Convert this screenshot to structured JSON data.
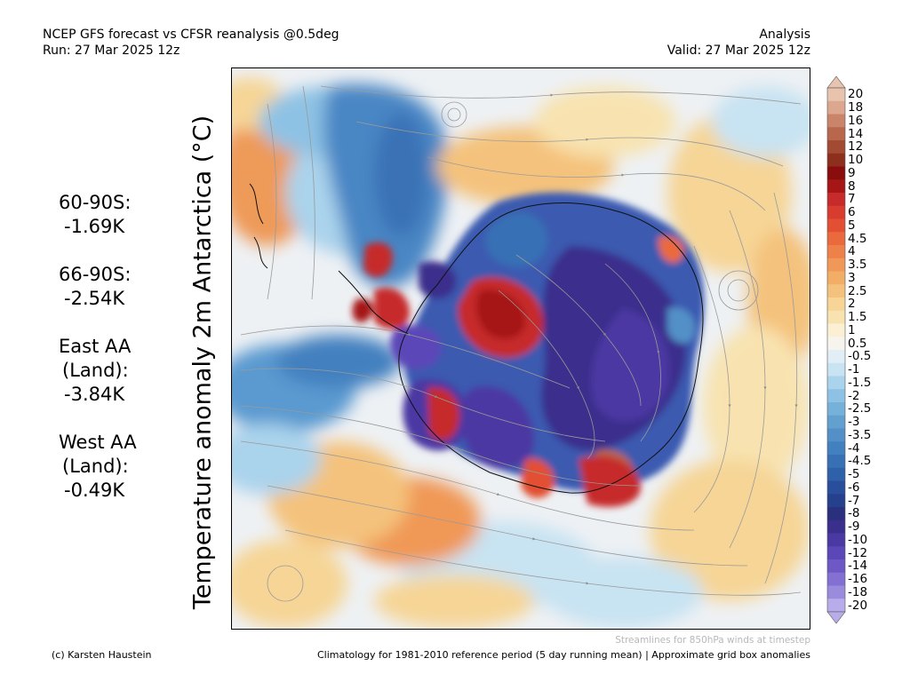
{
  "header": {
    "title": "NCEP GFS forecast vs CFSR reanalysis @0.5deg",
    "run": "Run: 27 Mar 2025 12z",
    "type": "Analysis",
    "valid": "Valid: 27 Mar 2025 12z"
  },
  "variable_label": "Temperature anomaly 2m Antarctica (°C)",
  "stats": [
    {
      "line1": "60-90S:",
      "line2": "-1.69K"
    },
    {
      "line1": "66-90S:",
      "line2": "-2.54K"
    },
    {
      "line1": "East AA",
      "line2": "(Land):",
      "line3": "-3.84K"
    },
    {
      "line1": "West AA",
      "line2": "(Land):",
      "line3": "-0.49K"
    }
  ],
  "colorbar": {
    "labels": [
      "20",
      "18",
      "16",
      "14",
      "12",
      "10",
      "9",
      "8",
      "7",
      "6",
      "5",
      "4.5",
      "4",
      "3.5",
      "3",
      "2.5",
      "2",
      "1.5",
      "1",
      "0.5",
      "-0.5",
      "-1",
      "-1.5",
      "-2",
      "-2.5",
      "-3",
      "-3.5",
      "-4",
      "-4.5",
      "-5",
      "-6",
      "-7",
      "-8",
      "-9",
      "-10",
      "-12",
      "-14",
      "-16",
      "-18",
      "-20"
    ],
    "colors": [
      "#e8c3ae",
      "#dba78e",
      "#c98469",
      "#b8664c",
      "#a34a32",
      "#8e2f1d",
      "#8a0d0d",
      "#a61616",
      "#c62a2a",
      "#d83c2e",
      "#e24f33",
      "#ea6a3e",
      "#ee8149",
      "#f09857",
      "#f2ad66",
      "#f4c27c",
      "#f6d596",
      "#f8e3b0",
      "#fbf0d3",
      "#f7f4ee",
      "#e2eef6",
      "#c8e3f2",
      "#aad3ec",
      "#8ec2e4",
      "#76b1da",
      "#62a0d0",
      "#5290c7",
      "#4380bf",
      "#3870b5",
      "#2f60aa",
      "#294f9c",
      "#25408c",
      "#2a2f7e",
      "#3a2f8c",
      "#4b39a3",
      "#5b47b8",
      "#6d58c6",
      "#8370d2",
      "#9a8bdc",
      "#b9acea"
    ]
  },
  "footer": {
    "streamlines": "Streamlines for 850hPa winds at timestep",
    "climatology": "Climatology for 1981-2010 reference period (5 day running mean) | Approximate grid box anomalies",
    "credit": "(c) Karsten Haustein"
  }
}
